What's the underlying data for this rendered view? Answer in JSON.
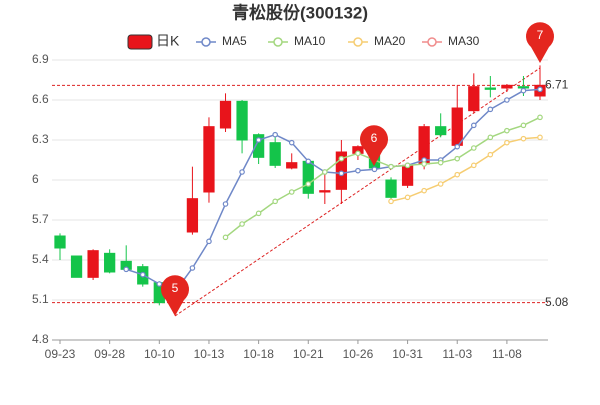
{
  "chart_data": {
    "type": "candlestick",
    "title": "青松股份(300132)",
    "categories": [
      "09-23",
      null,
      null,
      "09-28",
      null,
      null,
      "10-10",
      null,
      null,
      "10-13",
      null,
      null,
      "10-18",
      null,
      null,
      "10-21",
      null,
      null,
      "10-26",
      null,
      null,
      "10-31",
      null,
      null,
      "11-03",
      null,
      null,
      "11-08",
      null,
      null
    ],
    "candle": {
      "name": "日K",
      "up_color": "#e8141b",
      "down_color": "#14c44a",
      "open": [
        5.58,
        5.43,
        5.27,
        5.45,
        5.39,
        5.35,
        5.23,
        5.1,
        5.61,
        5.91,
        6.39,
        6.59,
        6.34,
        6.28,
        6.09,
        6.14,
        5.91,
        5.93,
        6.2,
        6.2,
        6.0,
        5.96,
        6.12,
        6.4,
        6.26,
        6.52,
        6.69,
        6.69,
        6.7,
        6.63
      ],
      "high": [
        5.6,
        5.43,
        5.48,
        5.48,
        5.51,
        5.37,
        5.24,
        5.18,
        6.1,
        6.47,
        6.65,
        6.6,
        6.35,
        6.32,
        6.2,
        6.15,
        6.07,
        6.3,
        6.26,
        6.22,
        6.02,
        6.13,
        6.42,
        6.5,
        6.71,
        6.8,
        6.78,
        6.72,
        6.78,
        6.86
      ],
      "low": [
        5.4,
        5.27,
        5.25,
        5.3,
        5.32,
        5.2,
        5.06,
        5.08,
        5.59,
        5.83,
        6.36,
        6.2,
        6.12,
        6.09,
        6.08,
        5.86,
        5.82,
        5.82,
        6.15,
        6.06,
        5.84,
        5.94,
        6.08,
        6.32,
        6.24,
        6.5,
        6.62,
        6.66,
        6.63,
        6.6
      ],
      "close": [
        5.49,
        5.27,
        5.47,
        5.31,
        5.33,
        5.22,
        5.08,
        5.16,
        5.86,
        6.4,
        6.59,
        6.3,
        6.17,
        6.11,
        6.13,
        5.9,
        5.92,
        6.21,
        6.25,
        6.09,
        5.87,
        6.11,
        6.4,
        6.34,
        6.54,
        6.7,
        6.68,
        6.71,
        6.69,
        6.71
      ]
    },
    "series": [
      {
        "name": "MA5",
        "color": "#6f88c8",
        "values": [
          null,
          null,
          null,
          null,
          5.33,
          5.29,
          5.22,
          5.17,
          5.34,
          5.54,
          5.82,
          6.06,
          6.3,
          6.34,
          6.28,
          6.14,
          6.06,
          6.05,
          6.07,
          6.08,
          6.1,
          6.11,
          6.15,
          6.15,
          6.25,
          6.41,
          6.53,
          6.6,
          6.67,
          6.68
        ]
      },
      {
        "name": "MA10",
        "color": "#a3d77f",
        "values": [
          null,
          null,
          null,
          null,
          null,
          null,
          null,
          null,
          null,
          null,
          5.57,
          5.67,
          5.75,
          5.84,
          5.91,
          5.97,
          6.06,
          6.16,
          6.2,
          6.15,
          6.1,
          6.11,
          6.12,
          6.13,
          6.16,
          6.24,
          6.32,
          6.37,
          6.41,
          6.47
        ]
      },
      {
        "name": "MA20",
        "color": "#f6cd72",
        "values": [
          null,
          null,
          null,
          null,
          null,
          null,
          null,
          null,
          null,
          null,
          null,
          null,
          null,
          null,
          null,
          null,
          null,
          null,
          null,
          null,
          5.84,
          5.87,
          5.92,
          5.97,
          6.04,
          6.11,
          6.19,
          6.28,
          6.31,
          6.32
        ]
      },
      {
        "name": "MA30",
        "color": "#f08c8c",
        "values": [
          null,
          null,
          null,
          null,
          null,
          null,
          null,
          null,
          null,
          null,
          null,
          null,
          null,
          null,
          null,
          null,
          null,
          null,
          null,
          null,
          null,
          null,
          null,
          null,
          null,
          null,
          null,
          null,
          null,
          null
        ]
      }
    ],
    "ref_lines": [
      6.71,
      5.08
    ],
    "markers": [
      "5",
      "6",
      "7"
    ],
    "ylim": [
      4.8,
      6.9
    ],
    "yticks": [
      4.8,
      5.1,
      5.4,
      5.7,
      6,
      6.3,
      6.6,
      6.9
    ],
    "grid": true
  }
}
